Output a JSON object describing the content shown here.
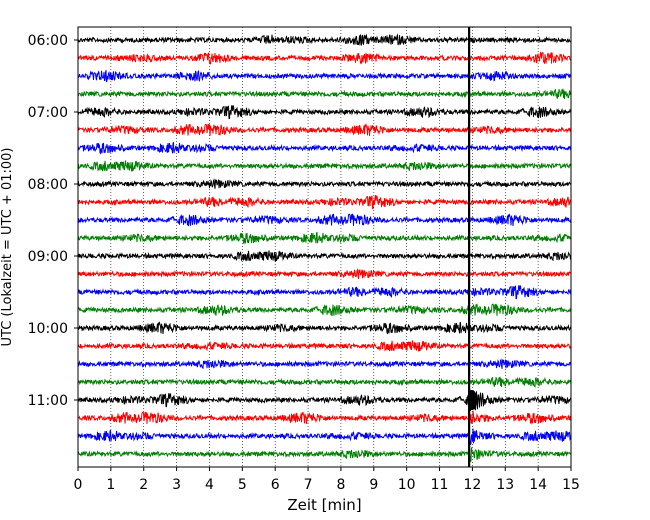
{
  "chart_data": {
    "type": "line",
    "title": "",
    "xlabel": "Zeit  [min]",
    "ylabel": "UTC (Lokalzeit = UTC + 01:00)",
    "xlim": [
      0,
      15
    ],
    "x_ticks": [
      "0",
      "1",
      "2",
      "3",
      "4",
      "5",
      "6",
      "7",
      "8",
      "9",
      "10",
      "11",
      "12",
      "13",
      "14",
      "15"
    ],
    "y_tick_labels": [
      "06:00",
      "07:00",
      "08:00",
      "09:00",
      "10:00",
      "11:00"
    ],
    "grid": "vertical-dotted",
    "trace_interval_minutes": 15,
    "trace_colors": [
      "#000000",
      "#ff0000",
      "#0000ff",
      "#008000"
    ],
    "event_marker_x_min": 11.9,
    "traces": [
      {
        "start": "06:00",
        "color": "#000000"
      },
      {
        "start": "06:15",
        "color": "#ff0000"
      },
      {
        "start": "06:30",
        "color": "#0000ff"
      },
      {
        "start": "06:45",
        "color": "#008000"
      },
      {
        "start": "07:00",
        "color": "#000000"
      },
      {
        "start": "07:15",
        "color": "#ff0000"
      },
      {
        "start": "07:30",
        "color": "#0000ff"
      },
      {
        "start": "07:45",
        "color": "#008000"
      },
      {
        "start": "08:00",
        "color": "#000000"
      },
      {
        "start": "08:15",
        "color": "#ff0000"
      },
      {
        "start": "08:30",
        "color": "#0000ff"
      },
      {
        "start": "08:45",
        "color": "#008000"
      },
      {
        "start": "09:00",
        "color": "#000000"
      },
      {
        "start": "09:15",
        "color": "#ff0000"
      },
      {
        "start": "09:30",
        "color": "#0000ff"
      },
      {
        "start": "09:45",
        "color": "#008000"
      },
      {
        "start": "10:00",
        "color": "#000000"
      },
      {
        "start": "10:15",
        "color": "#ff0000"
      },
      {
        "start": "10:30",
        "color": "#0000ff"
      },
      {
        "start": "10:45",
        "color": "#008000"
      },
      {
        "start": "11:00",
        "color": "#000000"
      },
      {
        "start": "11:15",
        "color": "#ff0000"
      },
      {
        "start": "11:30",
        "color": "#0000ff"
      },
      {
        "start": "11:45",
        "color": "#008000"
      }
    ]
  }
}
